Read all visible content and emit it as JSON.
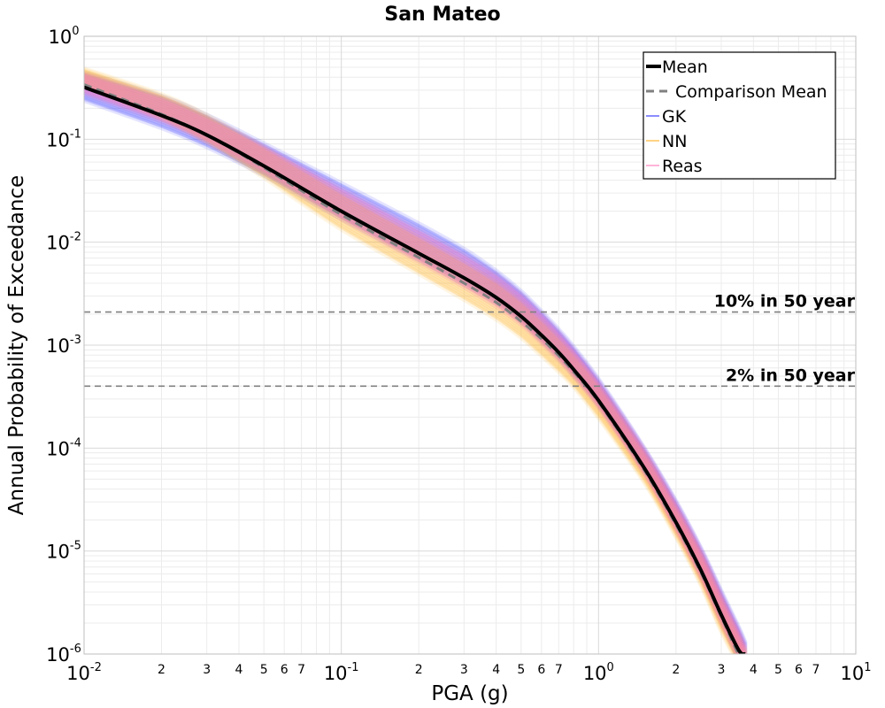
{
  "chart_data": {
    "type": "line",
    "title": "San Mateo",
    "xlabel": "PGA (g)",
    "ylabel": "Annual Probability of Exceedance",
    "x_scale": "log",
    "y_scale": "log",
    "xlim": [
      0.01,
      10
    ],
    "ylim": [
      1e-06,
      1
    ],
    "grid": true,
    "legend_position": "top-right",
    "x_ticks": {
      "major": [
        {
          "value": 0.01,
          "base": "10",
          "exp": "-2"
        },
        {
          "value": 0.1,
          "base": "10",
          "exp": "-1"
        },
        {
          "value": 1,
          "base": "10",
          "exp": "0"
        },
        {
          "value": 10,
          "base": "10",
          "exp": "1"
        }
      ],
      "minor_labels": [
        "2",
        "3",
        "4",
        "5",
        "6",
        "7"
      ]
    },
    "y_ticks": {
      "major": [
        {
          "value": 1,
          "base": "10",
          "exp": "0"
        },
        {
          "value": 0.1,
          "base": "10",
          "exp": "-1"
        },
        {
          "value": 0.01,
          "base": "10",
          "exp": "-2"
        },
        {
          "value": 0.001,
          "base": "10",
          "exp": "-3"
        },
        {
          "value": 0.0001,
          "base": "10",
          "exp": "-4"
        },
        {
          "value": 1e-05,
          "base": "10",
          "exp": "-5"
        },
        {
          "value": 1e-06,
          "base": "10",
          "exp": "-6"
        }
      ]
    },
    "x": [
      0.01,
      0.02,
      0.03,
      0.05,
      0.1,
      0.2,
      0.3,
      0.4,
      0.5,
      0.6,
      0.7,
      0.8,
      1.0,
      1.5,
      2.0,
      2.5,
      3.0,
      3.5,
      3.7
    ],
    "series": [
      {
        "name": "Mean",
        "color": "#000000",
        "style": "solid",
        "values": [
          0.32,
          0.17,
          0.11,
          0.055,
          0.02,
          0.0078,
          0.0045,
          0.0029,
          0.0019,
          0.00125,
          0.00085,
          0.00058,
          0.00029,
          6.5e-05,
          1.9e-05,
          6.5e-06,
          2.4e-06,
          1.1e-06,
          1e-06
        ]
      },
      {
        "name": "Comparison Mean",
        "color": "#808080",
        "style": "dashed",
        "values": [
          0.34,
          0.175,
          0.11,
          0.053,
          0.0185,
          0.0071,
          0.004,
          0.0026,
          0.0017,
          0.00115,
          0.00079,
          0.00055,
          0.00028,
          6.2e-05,
          1.8e-05,
          6.2e-06,
          2.3e-06,
          1e-06,
          9e-07
        ]
      },
      {
        "name": "GK",
        "color": "#4040ff",
        "style": "band",
        "lower": [
          0.24,
          0.13,
          0.085,
          0.045,
          0.017,
          0.0068,
          0.0039,
          0.0026,
          0.0017,
          0.0011,
          0.00075,
          0.00051,
          0.00026,
          6e-05,
          1.7e-05,
          5.8e-06,
          2.1e-06,
          9e-07,
          7e-07
        ],
        "upper": [
          0.44,
          0.26,
          0.17,
          0.09,
          0.037,
          0.015,
          0.0085,
          0.0052,
          0.0033,
          0.0021,
          0.0014,
          0.00095,
          0.00046,
          0.0001,
          3e-05,
          1.05e-05,
          4e-06,
          1.8e-06,
          1.3e-06
        ]
      },
      {
        "name": "NN",
        "color": "#ffb833",
        "style": "band",
        "lower": [
          0.33,
          0.16,
          0.095,
          0.043,
          0.0135,
          0.005,
          0.0028,
          0.0018,
          0.0012,
          0.0008,
          0.00056,
          0.0004,
          0.0002,
          4.8e-05,
          1.4e-05,
          4.8e-06,
          1.7e-06,
          8e-07,
          6e-07
        ],
        "upper": [
          0.48,
          0.27,
          0.17,
          0.082,
          0.029,
          0.011,
          0.0062,
          0.004,
          0.0026,
          0.0017,
          0.00115,
          0.0008,
          0.0004,
          9e-05,
          2.6e-05,
          9.2e-06,
          3.4e-06,
          1.5e-06,
          1.1e-06
        ]
      },
      {
        "name": "Reas",
        "color": "#ff80c0",
        "style": "band",
        "lower": [
          0.28,
          0.15,
          0.095,
          0.048,
          0.017,
          0.0065,
          0.0037,
          0.0024,
          0.0016,
          0.00105,
          0.00072,
          0.0005,
          0.00025,
          5.7e-05,
          1.6e-05,
          5.5e-06,
          2e-06,
          9e-07,
          7e-07
        ],
        "upper": [
          0.43,
          0.25,
          0.16,
          0.085,
          0.033,
          0.013,
          0.0075,
          0.0048,
          0.0031,
          0.002,
          0.00133,
          0.0009,
          0.00044,
          9.8e-05,
          2.9e-05,
          1.02e-05,
          3.8e-06,
          1.7e-06,
          1.2e-06
        ]
      }
    ],
    "reference_lines": [
      {
        "label": "10% in 50 year",
        "y": 0.0021,
        "color": "#808080",
        "style": "dashed"
      },
      {
        "label": "2% in 50 year",
        "y": 0.0004,
        "color": "#808080",
        "style": "dashed"
      }
    ]
  }
}
